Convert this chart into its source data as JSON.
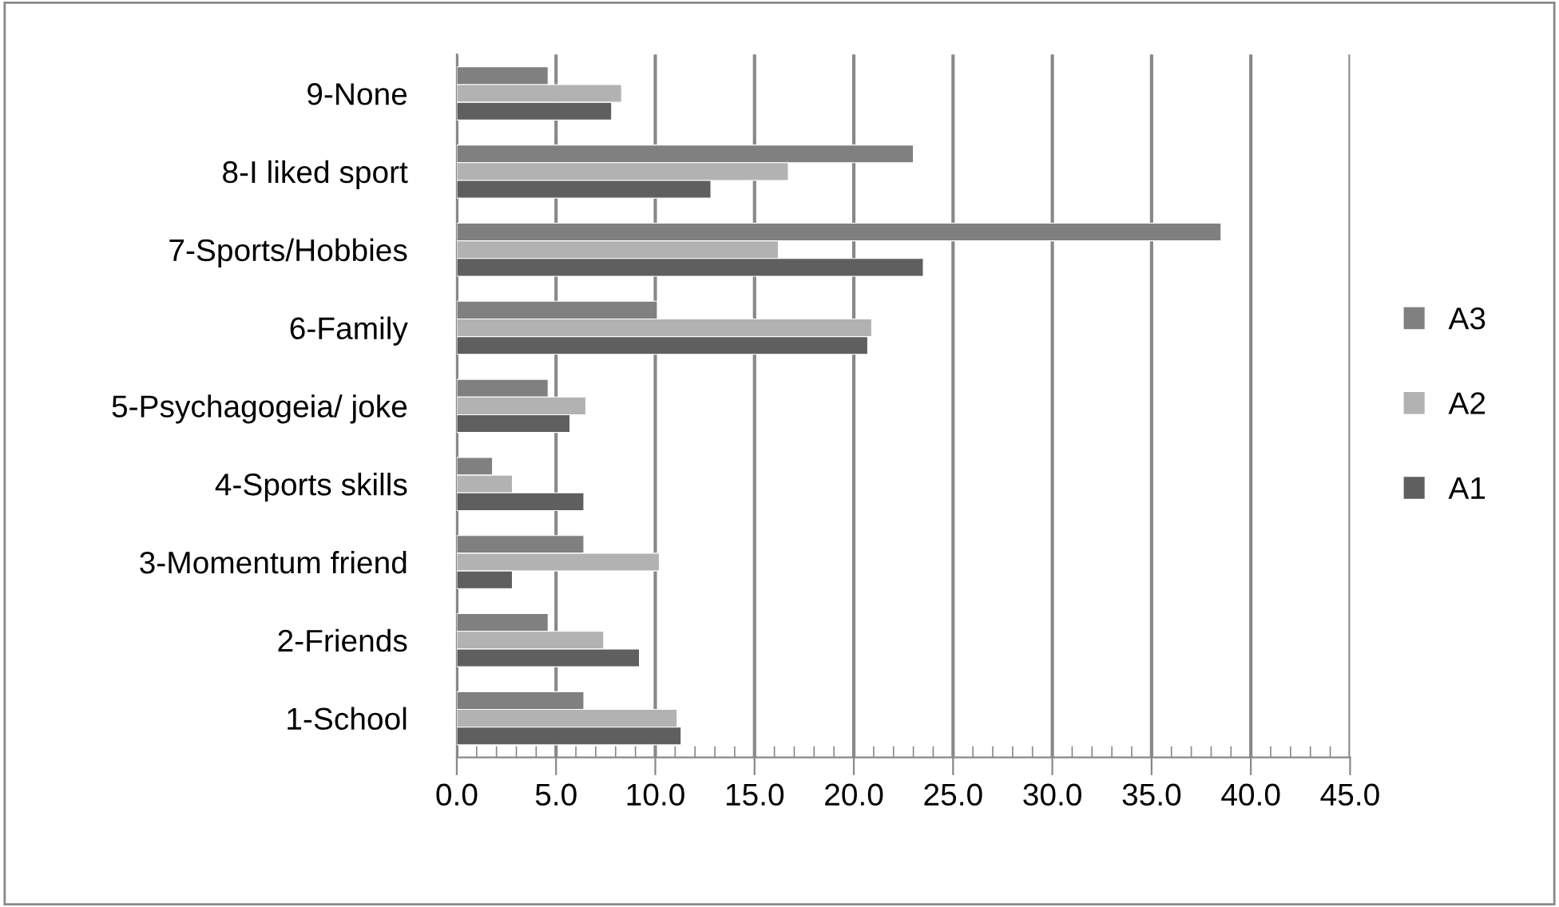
{
  "chart_data": {
    "type": "bar",
    "orientation": "horizontal",
    "categories": [
      "9-None",
      "8-I liked sport",
      "7-Sports/Hobbies",
      "6-Family",
      "5-Psychagogeia/ joke",
      "4-Sports skills",
      "3-Momentum friend",
      "2-Friends",
      "1-School"
    ],
    "series": [
      {
        "name": "A3",
        "color": "#808080",
        "values": [
          4.6,
          23.0,
          38.5,
          10.1,
          4.6,
          1.8,
          6.4,
          4.6,
          6.4
        ]
      },
      {
        "name": "A2",
        "color": "#b2b2b2",
        "values": [
          8.3,
          16.7,
          16.2,
          20.9,
          6.5,
          2.8,
          10.2,
          7.4,
          11.1
        ]
      },
      {
        "name": "A1",
        "color": "#5f5f5f",
        "values": [
          7.8,
          12.8,
          23.5,
          20.7,
          5.7,
          6.4,
          2.8,
          9.2,
          11.3
        ]
      }
    ],
    "xlim": [
      0,
      45
    ],
    "xticks": [
      {
        "value": 0,
        "label": "0.0"
      },
      {
        "value": 5,
        "label": "5.0"
      },
      {
        "value": 10,
        "label": "10.0"
      },
      {
        "value": 15,
        "label": "15.0"
      },
      {
        "value": 20,
        "label": "20.0"
      },
      {
        "value": 25,
        "label": "25.0"
      },
      {
        "value": 30,
        "label": "30.0"
      },
      {
        "value": 35,
        "label": "35.0"
      },
      {
        "value": 40,
        "label": "40.0"
      },
      {
        "value": 45,
        "label": "45.0"
      }
    ],
    "grid": "x",
    "legend": "right"
  }
}
